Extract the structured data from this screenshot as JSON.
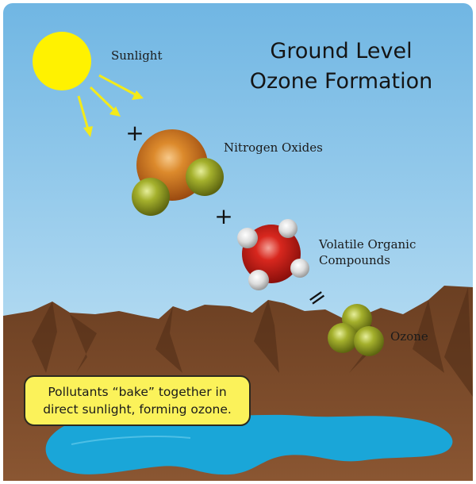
{
  "title_line1": "Ground Level",
  "title_line2": "Ozone Formation",
  "labels": {
    "sunlight": "Sunlight",
    "nitrogen_oxides": "Nitrogen Oxides",
    "voc_line1": "Volatile Organic",
    "voc_line2": "Compounds",
    "ozone": "Ozone"
  },
  "operators": {
    "plus": "+",
    "equals": "="
  },
  "callout": "Pollutants “bake” together in direct sunlight, forming ozone.",
  "colors": {
    "sky_top": "#6fb4e2",
    "sky_bottom": "#cde9f7",
    "sun": "#fff200",
    "sun_rays": "#f3ea1a",
    "mountain": "#7a4a2b",
    "lake": "#1aa6d8",
    "nox_core": "#d47a1e",
    "oxygen_green": "#8f9a1f",
    "voc_core": "#d2231d",
    "hydrogen": "#e8e8e8",
    "callout_bg": "#fbf25a"
  }
}
